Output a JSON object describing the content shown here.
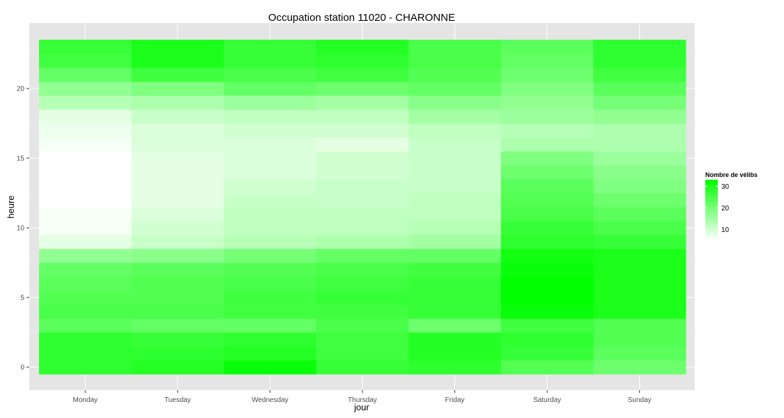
{
  "chart_data": {
    "type": "heatmap",
    "title": "Occupation station 11020 - CHARONNE",
    "xlabel": "jour",
    "ylabel": "heure",
    "categories": [
      "Monday",
      "Tuesday",
      "Wednesday",
      "Thursday",
      "Friday",
      "Saturday",
      "Sunday"
    ],
    "hours": [
      0,
      1,
      2,
      3,
      4,
      5,
      6,
      7,
      8,
      9,
      10,
      11,
      12,
      13,
      14,
      15,
      16,
      17,
      18,
      19,
      20,
      21,
      22,
      23
    ],
    "ylim": [
      -0.5,
      23.5
    ],
    "y_ticks": [
      0,
      5,
      10,
      15,
      20
    ],
    "grid": true,
    "value_range": [
      5,
      33
    ],
    "legend": {
      "title": "Nombre de vélibs",
      "ticks": [
        10,
        20,
        30
      ],
      "placement": "right",
      "color_low": "#ffffff",
      "color_high": "#00ff00"
    },
    "values": [
      [
        28,
        29,
        32,
        27,
        28,
        24,
        21
      ],
      [
        28,
        28,
        29,
        26,
        29,
        27,
        23
      ],
      [
        28,
        27,
        28,
        26,
        29,
        28,
        24
      ],
      [
        23,
        22,
        22,
        25,
        21,
        26,
        24
      ],
      [
        25,
        25,
        26,
        26,
        27,
        32,
        30
      ],
      [
        24,
        24,
        26,
        27,
        27,
        33,
        30
      ],
      [
        23,
        24,
        25,
        26,
        27,
        33,
        30
      ],
      [
        22,
        23,
        24,
        25,
        26,
        32,
        30
      ],
      [
        17,
        18,
        20,
        22,
        22,
        31,
        30
      ],
      [
        8,
        11,
        13,
        14,
        15,
        28,
        27
      ],
      [
        6,
        10,
        12,
        12,
        13,
        27,
        25
      ],
      [
        6,
        9,
        12,
        12,
        12,
        25,
        23
      ],
      [
        5,
        8,
        11,
        11,
        12,
        24,
        21
      ],
      [
        5,
        8,
        10,
        11,
        11,
        23,
        19
      ],
      [
        5,
        8,
        9,
        10,
        11,
        21,
        18
      ],
      [
        5,
        8,
        9,
        10,
        11,
        19,
        16
      ],
      [
        6,
        9,
        9,
        8,
        11,
        14,
        14
      ],
      [
        7,
        9,
        10,
        10,
        12,
        13,
        14
      ],
      [
        8,
        11,
        12,
        12,
        15,
        16,
        17
      ],
      [
        13,
        14,
        16,
        15,
        18,
        17,
        20
      ],
      [
        17,
        19,
        22,
        21,
        22,
        19,
        23
      ],
      [
        22,
        26,
        25,
        26,
        24,
        21,
        26
      ],
      [
        26,
        30,
        27,
        28,
        25,
        22,
        28
      ],
      [
        27,
        30,
        27,
        29,
        25,
        23,
        28
      ]
    ]
  }
}
